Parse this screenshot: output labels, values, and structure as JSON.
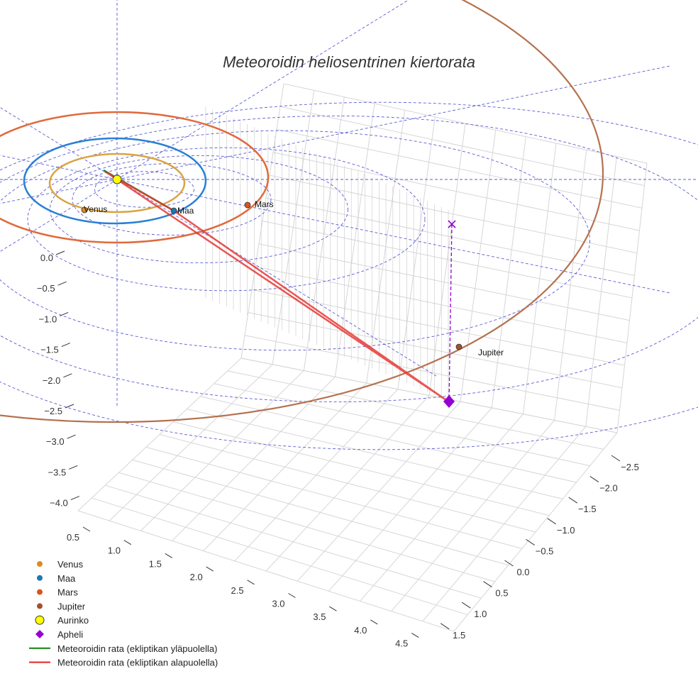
{
  "chart_data": {
    "type": "scatter3d",
    "title": "Meteoroidin heliosentrinen kiertorata",
    "x_ticks": [
      "0.5",
      "1.0",
      "1.5",
      "2.0",
      "2.5",
      "3.0",
      "3.5",
      "4.0",
      "4.5"
    ],
    "y_ticks": [
      "−2.5",
      "−2.0",
      "−1.5",
      "−1.0",
      "−0.5",
      "0.0",
      "0.5",
      "1.0",
      "1.5"
    ],
    "z_ticks": [
      "0.0",
      "−0.5",
      "−1.0",
      "−1.5",
      "−2.0",
      "−2.5",
      "−3.0",
      "−3.5",
      "−4.0"
    ],
    "xlim": [
      0.3,
      4.8
    ],
    "ylim": [
      -2.7,
      1.7
    ],
    "zlim": [
      -4.2,
      0.2
    ],
    "bodies": [
      {
        "name": "Venus",
        "color": "#e08a22",
        "orbit_color": "#d9a441",
        "orbit_radius_au": 0.72
      },
      {
        "name": "Maa",
        "color": "#1f77b4",
        "orbit_color": "#2a7fd4",
        "orbit_radius_au": 1.0
      },
      {
        "name": "Mars",
        "color": "#d9531e",
        "orbit_color": "#e06a3c",
        "orbit_radius_au": 1.52
      },
      {
        "name": "Jupiter",
        "color": "#a0522d",
        "orbit_color": "#b5714f",
        "orbit_radius_au": 5.2
      }
    ],
    "sun": {
      "name": "Aurinko",
      "color": "#ffff00"
    },
    "aphelion": {
      "name": "Apheli",
      "color": "#9400d3"
    },
    "trajectory": [
      {
        "name": "Meteoroidin rata (ekliptikan yläpuolella)",
        "color": "#1a8a1a"
      },
      {
        "name": "Meteoroidin rata (ekliptikan alapuolella)",
        "color": "#e53935"
      }
    ],
    "reference_grid": "ecliptic polar grid (dashed blue)",
    "legend": [
      {
        "label": "Venus",
        "marker": "circle",
        "color": "#e08a22"
      },
      {
        "label": "Maa",
        "marker": "circle",
        "color": "#1f77b4"
      },
      {
        "label": "Mars",
        "marker": "circle",
        "color": "#d9531e"
      },
      {
        "label": "Jupiter",
        "marker": "circle",
        "color": "#a0522d"
      },
      {
        "label": "Aurinko",
        "marker": "circle-large",
        "color": "#ffff00"
      },
      {
        "label": "Apheli",
        "marker": "diamond",
        "color": "#9400d3"
      },
      {
        "label": "Meteoroidin rata (ekliptikan yläpuolella)",
        "marker": "line",
        "color": "#1a8a1a"
      },
      {
        "label": "Meteoroidin rata (ekliptikan alapuolella)",
        "marker": "line",
        "color": "#e53935"
      }
    ],
    "legend_position": "bottom-left"
  }
}
